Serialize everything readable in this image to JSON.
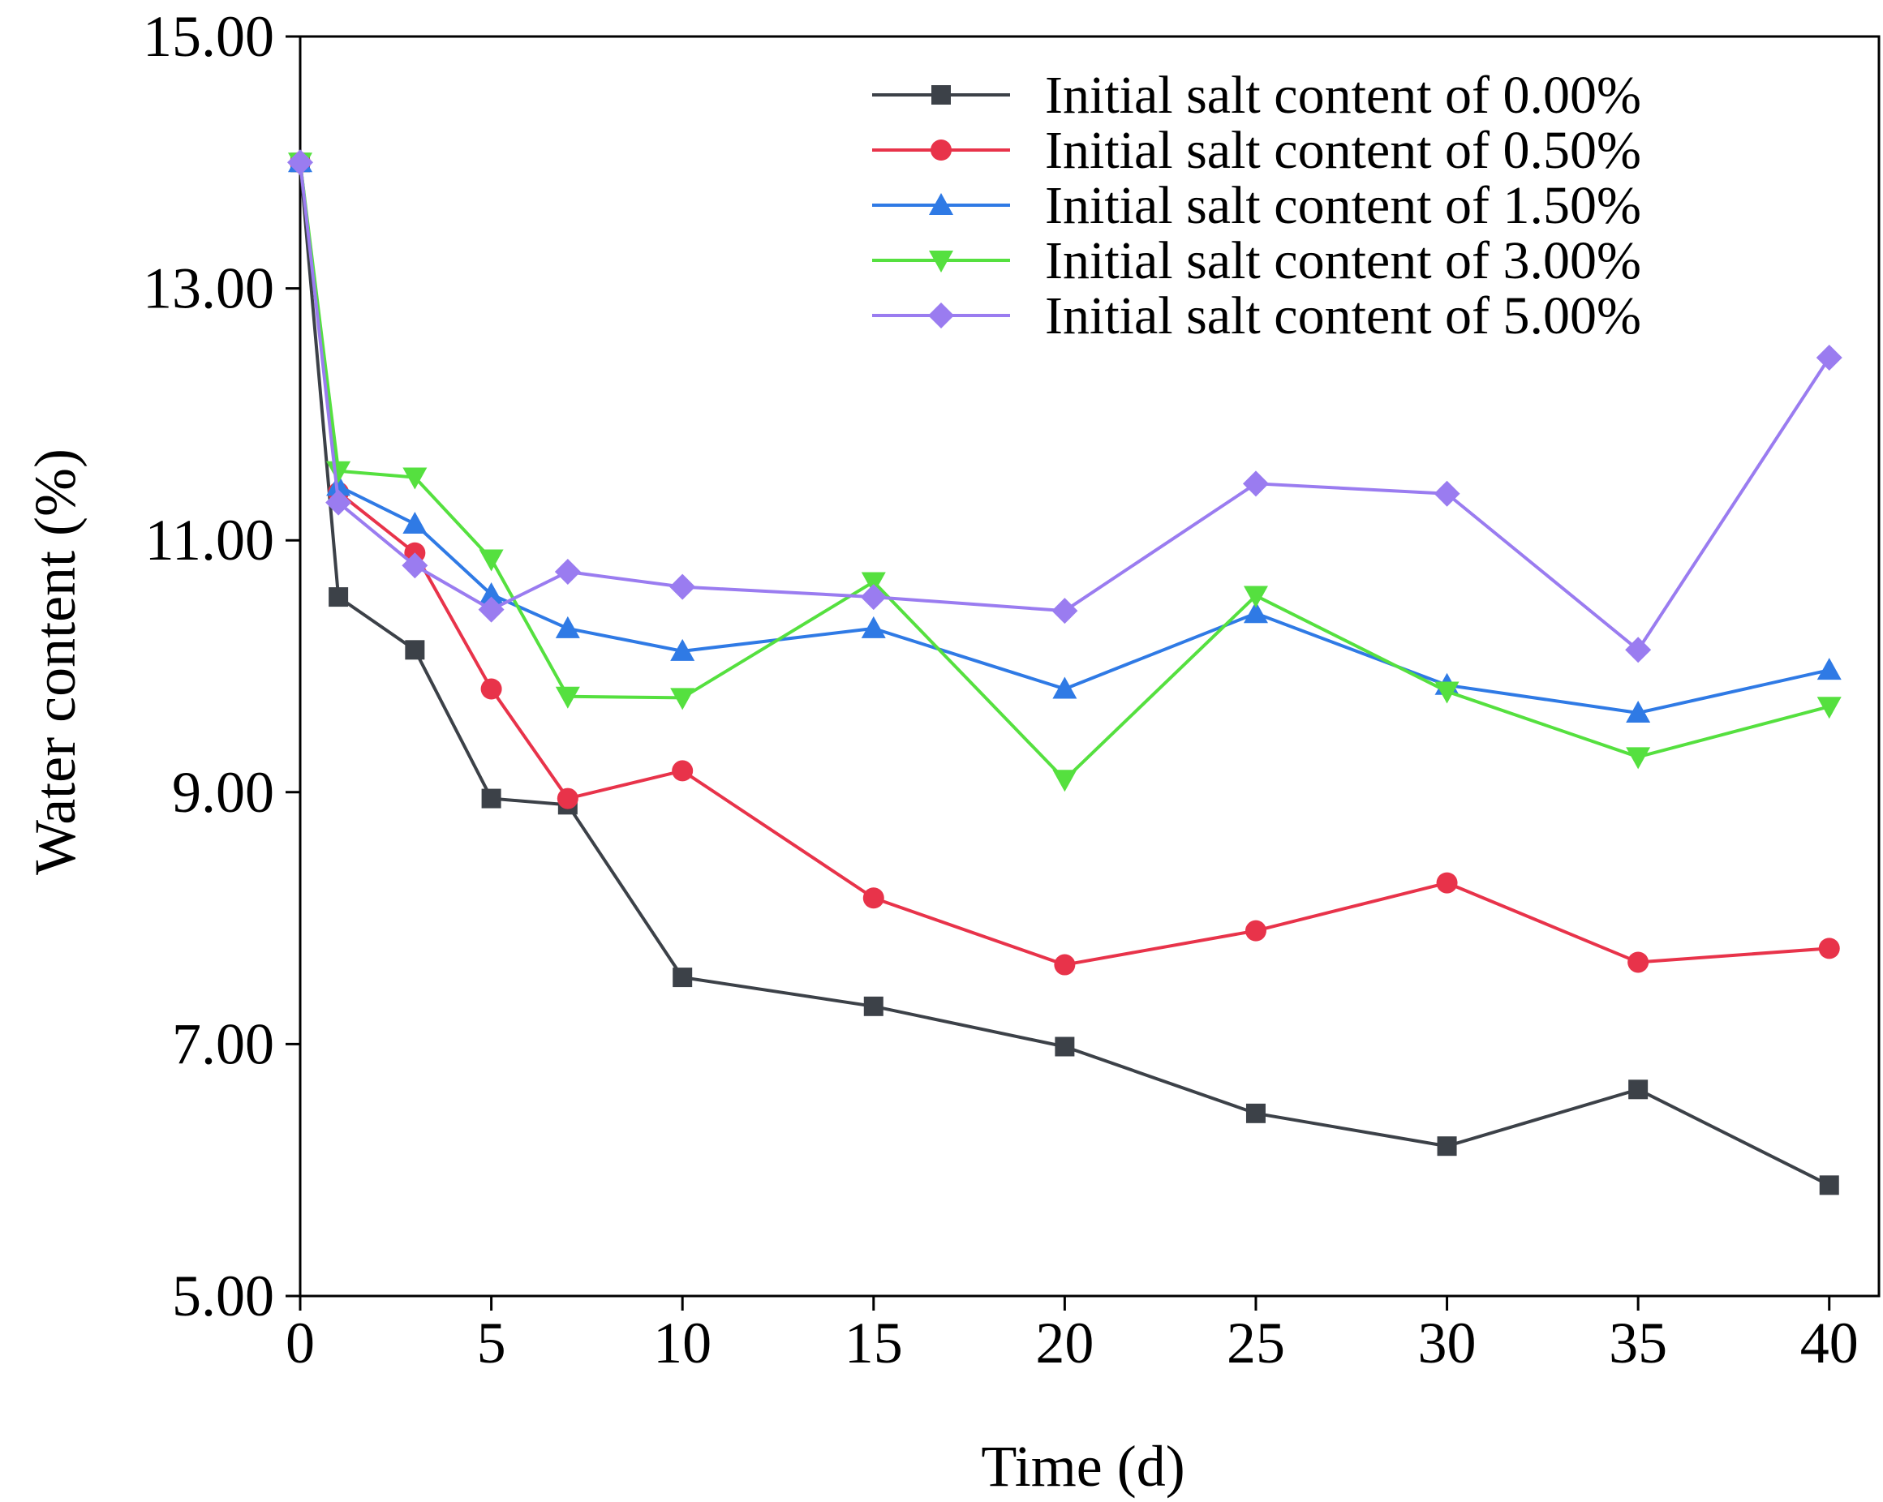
{
  "chart_data": {
    "type": "line",
    "title": "",
    "xlabel": "Time (d)",
    "ylabel": "Water content (%)",
    "xlim": [
      0,
      41.3
    ],
    "ylim": [
      5,
      15
    ],
    "x_ticks": [
      0,
      5,
      10,
      15,
      20,
      25,
      30,
      35,
      40
    ],
    "x_tick_labels": [
      "0",
      "5",
      "10",
      "15",
      "20",
      "25",
      "30",
      "35",
      "40"
    ],
    "y_ticks": [
      5,
      7,
      9,
      11,
      13,
      15
    ],
    "y_tick_labels": [
      "5.00",
      "7.00",
      "9.00",
      "11.00",
      "13.00",
      "15.00"
    ],
    "grid": false,
    "legend_position": "top-right",
    "x": [
      0,
      1,
      3,
      5,
      7,
      10,
      15,
      20,
      25,
      30,
      35,
      40
    ],
    "series": [
      {
        "name": "Initial salt content of 0.00%",
        "color": "#3c4148",
        "marker": "square",
        "values": [
          14.0,
          10.55,
          10.13,
          8.95,
          8.9,
          7.53,
          7.3,
          6.98,
          6.45,
          6.19,
          6.64,
          5.88
        ]
      },
      {
        "name": "Initial salt content of 0.50%",
        "color": "#e8334a",
        "marker": "circle",
        "values": [
          14.0,
          11.38,
          10.9,
          9.82,
          8.95,
          9.17,
          8.16,
          7.63,
          7.9,
          8.28,
          7.65,
          7.76
        ]
      },
      {
        "name": "Initial salt content of 1.50%",
        "color": "#2f7ae5",
        "marker": "triangle-up",
        "values": [
          14.0,
          11.43,
          11.13,
          10.57,
          10.3,
          10.12,
          10.3,
          9.82,
          10.42,
          9.85,
          9.63,
          9.97
        ]
      },
      {
        "name": "Initial salt content of 3.00%",
        "color": "#55e03f",
        "marker": "triangle-down",
        "values": [
          14.0,
          11.55,
          11.5,
          10.85,
          9.76,
          9.75,
          10.67,
          9.1,
          10.56,
          9.8,
          9.28,
          9.68
        ]
      },
      {
        "name": "Initial salt content of 5.00%",
        "color": "#9a7cf0",
        "marker": "diamond",
        "values": [
          14.0,
          11.3,
          10.8,
          10.45,
          10.75,
          10.63,
          10.55,
          10.44,
          11.45,
          11.37,
          10.13,
          12.45
        ]
      }
    ]
  }
}
